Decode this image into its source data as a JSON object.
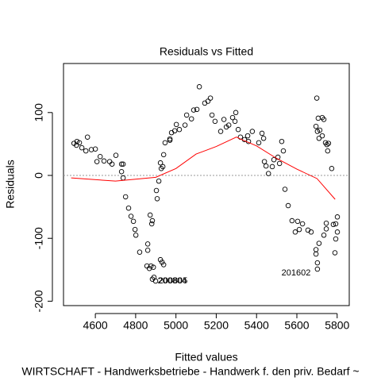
{
  "chart_data": {
    "type": "scatter",
    "title": "Residuals vs Fitted",
    "xlabel": "Fitted values",
    "ylabel": "Residuals",
    "caption": "WIRTSCHAFT - Handwerksbetriebe - Handwerk f. den priv. Bedarf ~",
    "color": "#000000",
    "x": [
      4494,
      4509,
      4521,
      4506,
      4533,
      4553,
      4561,
      4580,
      4600,
      4608,
      4624,
      4643,
      4671,
      4683,
      4702,
      4730,
      4738,
      4730,
      4738,
      4750,
      4765,
      4777,
      4789,
      4797,
      4801,
      4820,
      4860,
      4860,
      4856,
      4868,
      4876,
      4888,
      4891,
      4872,
      4880,
      4883,
      4907,
      4903,
      4915,
      4923,
      4935,
      4939,
      4927,
      4946,
      4970,
      4970,
      4978,
      4994,
      5002,
      5017,
      5045,
      5053,
      5077,
      5088,
      5104,
      5116,
      5143,
      5159,
      5171,
      5179,
      5194,
      5222,
      5238,
      5250,
      5262,
      5281,
      5297,
      5293,
      5309,
      5320,
      5340,
      5356,
      5360,
      5379,
      5411,
      5427,
      5435,
      5439,
      5447,
      5459,
      5478,
      5486,
      5506,
      5514,
      5525,
      5533,
      5541,
      5557,
      5576,
      5592,
      5612,
      5628,
      5604,
      5655,
      5671,
      5695,
      5702,
      5702,
      5710,
      5695,
      5695,
      5699,
      5702,
      5710,
      5706,
      5714,
      5726,
      5734,
      5726,
      5734,
      5746,
      5742,
      5749,
      5757,
      5753,
      5773,
      5781,
      5789,
      5793,
      5801,
      5793,
      5801,
      5746,
      4899,
      4883,
      4931,
      4939,
      4923
    ],
    "values": [
      51,
      54,
      52,
      48,
      44,
      39,
      61,
      41,
      42,
      22,
      30,
      23,
      22,
      18,
      32,
      18,
      18,
      6,
      -4,
      -34,
      -52,
      -65,
      -73,
      -86,
      -95,
      -122,
      -119,
      -109,
      -144,
      -148,
      -144,
      -146,
      -162,
      -63,
      -77,
      -72,
      -37,
      -24,
      -9,
      20,
      14,
      33,
      11,
      52,
      56,
      58,
      68,
      71,
      81,
      73,
      80,
      96,
      90,
      104,
      105,
      141,
      115,
      118,
      123,
      96,
      86,
      70,
      89,
      77,
      80,
      92,
      100,
      86,
      73,
      61,
      57,
      63,
      54,
      70,
      52,
      67,
      59,
      22,
      15,
      3,
      14,
      25,
      29,
      19,
      54,
      39,
      -22,
      -48,
      -72,
      -90,
      -86,
      -77,
      -73,
      -87,
      -90,
      -118,
      -139,
      -149,
      -108,
      -125,
      78,
      123,
      70,
      59,
      91,
      72,
      92,
      89,
      63,
      -95,
      -85,
      52,
      49,
      51,
      39,
      11,
      -78,
      -123,
      -101,
      -90,
      -77,
      -66,
      -76,
      -168,
      -165,
      -138,
      -142,
      -134
    ],
    "smooth": {
      "color": "#ff0000",
      "x": [
        4480,
        4700,
        4900,
        5000,
        5100,
        5200,
        5300,
        5320,
        5400,
        5500,
        5600,
        5700,
        5790
      ],
      "values": [
        -4,
        -9,
        -3,
        11,
        34,
        46,
        61,
        58,
        47,
        27,
        10,
        -5,
        -38
      ]
    },
    "hline": 0,
    "annotations": [
      "200805",
      "200804",
      "201602"
    ],
    "xlim": [
      4442,
      5860
    ],
    "ylim": [
      -207,
      178
    ],
    "xticks": [
      4600,
      4800,
      5000,
      5200,
      5400,
      5600,
      5800
    ],
    "yticks": [
      -200,
      -100,
      0,
      100
    ]
  }
}
